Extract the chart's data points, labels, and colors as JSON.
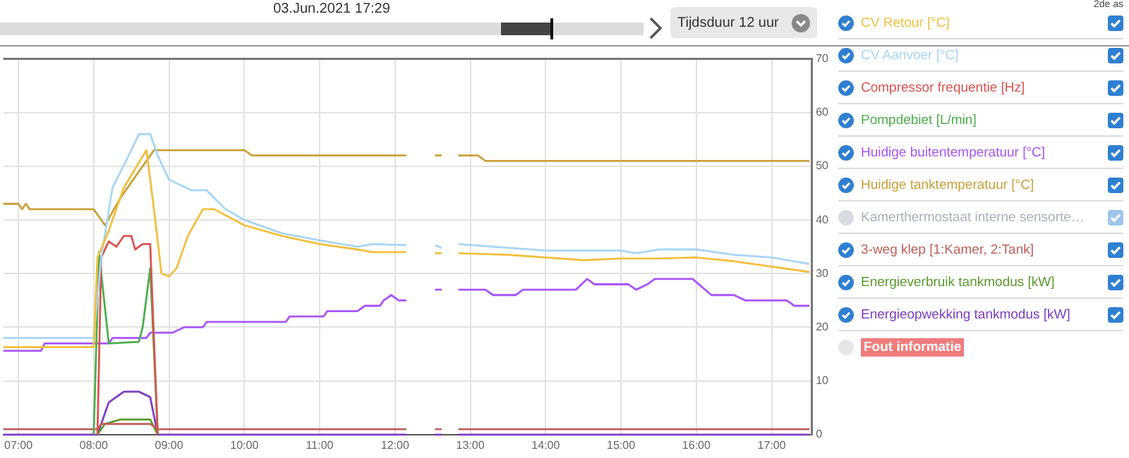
{
  "chart_data": {
    "type": "line",
    "title": "03.Jun.2021 17:29",
    "annotations": [
      "2de as",
      "Tijdsduur 12 uur",
      "Fout informatie"
    ],
    "xlim": [
      6.8,
      17.53
    ],
    "xticks": [
      {
        "value": 7,
        "label": "07:00"
      },
      {
        "value": 8,
        "label": "08:00"
      },
      {
        "value": 9,
        "label": "09:00"
      },
      {
        "value": 10,
        "label": "10:00"
      },
      {
        "value": 11,
        "label": "11:00"
      },
      {
        "value": 12,
        "label": "12:00"
      },
      {
        "value": 13,
        "label": "13:00"
      },
      {
        "value": 14,
        "label": "14:00"
      },
      {
        "value": 15,
        "label": "15:00"
      },
      {
        "value": 16,
        "label": "16:00"
      },
      {
        "value": 17,
        "label": "17:00"
      }
    ],
    "ylim": [
      0,
      70
    ],
    "yticks": [
      0,
      10,
      20,
      30,
      40,
      50,
      60,
      70
    ],
    "grid": true,
    "legend": "right",
    "marker": "none",
    "line_style": "solid",
    "series": [
      {
        "name": "CV Retour [°C]",
        "color": "#f2bf3e",
        "x": [
          6.8,
          8.0,
          8.05,
          8.2,
          8.4,
          8.7,
          8.8,
          8.9,
          9.0,
          9.1,
          9.25,
          9.45,
          9.6,
          10.0,
          10.5,
          11.0,
          11.5,
          11.7,
          12.15,
          12.35,
          12.53,
          12.62,
          12.7,
          12.84,
          13.5,
          14.0,
          14.5,
          15.0,
          15.5,
          16.0,
          16.5,
          17.0,
          17.5
        ],
        "values": [
          16.3,
          16.3,
          33,
          38,
          46,
          53,
          42,
          30,
          29.5,
          31,
          37,
          42,
          42,
          39,
          37,
          35.5,
          34.5,
          34,
          34,
          null,
          33.8,
          33.8,
          null,
          33.8,
          33.5,
          33,
          32.5,
          32.8,
          32.8,
          33,
          32.3,
          31.3,
          30.3
        ]
      },
      {
        "name": "CV Aanvoer [°C]",
        "color": "#a8d5f7",
        "x": [
          6.8,
          8.0,
          8.1,
          8.25,
          8.5,
          8.6,
          8.75,
          8.85,
          9.0,
          9.3,
          9.5,
          9.75,
          10.0,
          10.5,
          11.0,
          11.5,
          11.7,
          12.15,
          12.35,
          12.53,
          12.62,
          12.7,
          12.84,
          13.3,
          14.0,
          15.0,
          15.2,
          15.5,
          16.0,
          16.5,
          17.0,
          17.5
        ],
        "values": [
          18,
          18,
          33,
          46,
          53,
          56,
          56,
          52,
          47.5,
          45.5,
          45.5,
          42,
          40,
          37.5,
          36.2,
          35,
          35.5,
          35.3,
          null,
          35.3,
          34.8,
          null,
          35.5,
          35,
          34.3,
          34.3,
          33.8,
          34.5,
          34.5,
          33.5,
          33,
          31.8
        ]
      },
      {
        "name": "Compressor frequentie [Hz]",
        "color": "#d9534f",
        "x": [
          8.05,
          8.1,
          8.2,
          8.3,
          8.4,
          8.5,
          8.55,
          8.65,
          8.75,
          8.85
        ],
        "values": [
          0,
          33,
          36,
          35,
          37,
          37,
          34.5,
          35.5,
          35.5,
          0
        ]
      },
      {
        "name": "Pompdebiet [L/min]",
        "color": "#4cae4c",
        "x": [
          8.0,
          8.07,
          8.2,
          8.6,
          8.65,
          8.75,
          8.85
        ],
        "values": [
          0,
          34,
          17,
          17.3,
          20,
          31,
          0
        ]
      },
      {
        "name": "Huidige buitentemperatuur [°C]",
        "color": "#a855f7",
        "x": [
          6.8,
          7.3,
          7.35,
          8.2,
          8.25,
          8.7,
          8.75,
          9.05,
          9.2,
          9.45,
          9.5,
          10.55,
          10.6,
          11.05,
          11.1,
          11.5,
          11.6,
          11.8,
          11.85,
          11.95,
          12.05,
          12.15,
          12.35,
          12.53,
          12.62,
          12.7,
          12.84,
          13.2,
          13.3,
          13.6,
          13.7,
          14.4,
          14.55,
          14.65,
          15.1,
          15.2,
          15.35,
          15.45,
          15.95,
          16.2,
          16.5,
          16.65,
          17.2,
          17.3,
          17.5
        ],
        "values": [
          15.6,
          15.6,
          17,
          17,
          18,
          18,
          19,
          19,
          20,
          20,
          21,
          21,
          22,
          22,
          23,
          23,
          24,
          24,
          25,
          26,
          25,
          25,
          null,
          27,
          27,
          null,
          27,
          27,
          26,
          26,
          27,
          27,
          29,
          28,
          28,
          27,
          28,
          29,
          29,
          26,
          26,
          25,
          25,
          24,
          24
        ]
      },
      {
        "name": "Huidige tanktemperatuur [°C]",
        "color": "#c9a13a",
        "x": [
          6.8,
          7.0,
          7.05,
          7.1,
          7.15,
          8.0,
          8.15,
          8.35,
          8.6,
          8.8,
          10.0,
          10.1,
          12.15,
          12.35,
          12.53,
          12.62,
          12.7,
          12.84,
          13.1,
          13.2,
          17.5
        ],
        "values": [
          43,
          43,
          42,
          43,
          42,
          42,
          39,
          44,
          49,
          53,
          53,
          52,
          52,
          null,
          52,
          52,
          null,
          52,
          52,
          51,
          51
        ]
      },
      {
        "name": "Kamerthermostaat interne sensorte…",
        "color": "#a9b0bc"
      },
      {
        "name": "3-weg klep [1:Kamer, 2:Tank]",
        "color": "#c0605a",
        "x": [
          6.8,
          8.05,
          8.1,
          8.75,
          8.85,
          12.15,
          12.35,
          12.53,
          12.62,
          12.7,
          12.84,
          17.5
        ],
        "values": [
          1,
          1,
          2,
          2,
          1,
          1,
          null,
          1,
          1,
          null,
          1,
          1
        ]
      },
      {
        "name": "Energieverbruik tankmodus [kW]",
        "color": "#5a9a2e",
        "x": [
          8.05,
          8.15,
          8.35,
          8.75,
          8.85
        ],
        "values": [
          0,
          2,
          2.8,
          2.8,
          0
        ]
      },
      {
        "name": "Energieopwekking tankmodus [kW]",
        "color": "#7b3fc4",
        "x": [
          6.8,
          8.05,
          8.2,
          8.4,
          8.6,
          8.75,
          8.85,
          12.15,
          12.35,
          12.53,
          12.62,
          12.7,
          12.84,
          17.5
        ],
        "values": [
          0,
          0,
          6,
          8,
          8,
          7,
          0,
          0,
          null,
          0,
          0,
          null,
          0,
          0
        ]
      }
    ]
  }
}
